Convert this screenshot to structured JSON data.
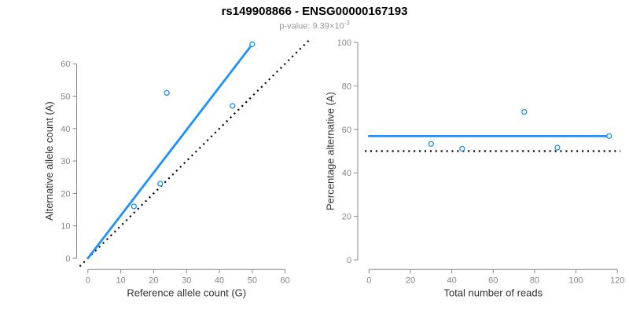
{
  "header": {
    "title": "rs149908866 - ENSG00000167193",
    "subtitle_prefix": "p-value: 9.39×10",
    "subtitle_exponent": "-3"
  },
  "colors": {
    "accent_blue": "#1E90FF",
    "reference_black": "#000000",
    "axis_line": "#8a8a8a",
    "tick_label": "#858585",
    "axis_title": "#333333",
    "subtitle_gray": "#999999",
    "title_black": "#000000",
    "point_fill": "#ffffff"
  },
  "chart_data": [
    {
      "type": "scatter",
      "panel": "allele-counts",
      "xlabel": "Reference allele count (G)",
      "ylabel": "Alternative allele count (A)",
      "xlim": [
        0,
        60
      ],
      "ylim": [
        0,
        66
      ],
      "xticks": [
        0,
        10,
        20,
        30,
        40,
        50,
        60
      ],
      "yticks": [
        0,
        10,
        20,
        30,
        40,
        50,
        60
      ],
      "grid": false,
      "points": [
        [
          14,
          16
        ],
        [
          22,
          23
        ],
        [
          24,
          51
        ],
        [
          44,
          47
        ],
        [
          50,
          66
        ]
      ],
      "lines": [
        {
          "name": "identity-line",
          "style": "dotted",
          "color_key": "reference_black",
          "from": [
            -2.5,
            -2.5
          ],
          "to": [
            67.5,
            67.5
          ]
        },
        {
          "name": "regression-line",
          "style": "solid",
          "color_key": "accent_blue",
          "from": [
            0,
            0
          ],
          "to": [
            50,
            66
          ]
        }
      ]
    },
    {
      "type": "scatter",
      "panel": "percentage-alternative",
      "xlabel": "Total number of reads",
      "ylabel": "Percentage alternative (A)",
      "xlim": [
        0,
        120
      ],
      "ylim": [
        0,
        100
      ],
      "xticks": [
        0,
        20,
        40,
        60,
        80,
        100,
        120
      ],
      "yticks": [
        0,
        20,
        40,
        60,
        80,
        100
      ],
      "grid": false,
      "points": [
        [
          30,
          53.3
        ],
        [
          45,
          51.1
        ],
        [
          75,
          68
        ],
        [
          91,
          51.6
        ],
        [
          116,
          56.9
        ]
      ],
      "lines": [
        {
          "name": "fifty-percent-line",
          "style": "dotted",
          "color_key": "reference_black",
          "from": [
            -2,
            50
          ],
          "to": [
            121.5,
            50
          ]
        },
        {
          "name": "mean-percentage-line",
          "style": "solid",
          "color_key": "accent_blue",
          "from": [
            0,
            56.9
          ],
          "to": [
            116,
            56.9
          ]
        }
      ]
    }
  ]
}
